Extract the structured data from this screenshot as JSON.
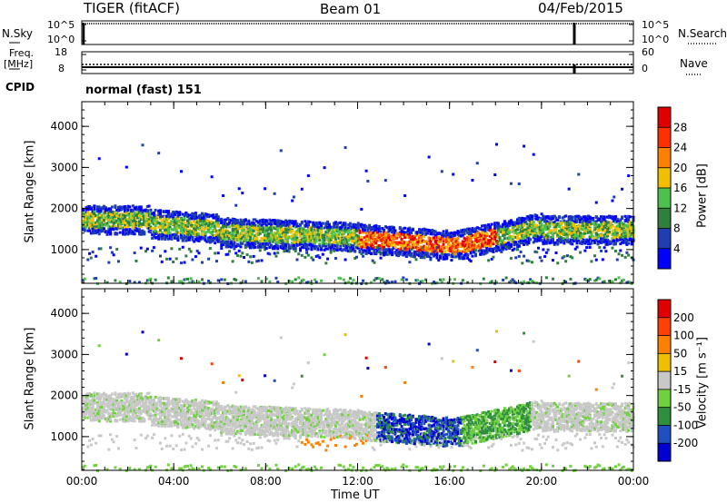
{
  "header": {
    "station": "TIGER (fitACF)",
    "beam": "Beam 01",
    "date": "04/Feb/2015"
  },
  "status_panels": {
    "nsky_label": "N.Sky",
    "nsky_ticks": [
      "10^5",
      "10^0"
    ],
    "nsearch_label": "N.Search",
    "nsearch_ticks": [
      "10^5",
      "10^0"
    ],
    "freq_label_1": "Freq.",
    "freq_label_2": "[MHz]",
    "freq_ticks": [
      "18",
      "8"
    ],
    "nave_label": "Nave",
    "nave_ticks": [
      "60",
      "0"
    ],
    "cpid_label": "CPID",
    "cpid_value": "normal (fast) 151"
  },
  "chart_data": [
    {
      "type": "heatmap",
      "panel": "power",
      "ylabel": "Slant Range [km]",
      "xlabel": "",
      "ylim": [
        180,
        4600
      ],
      "xlim": [
        0,
        24
      ],
      "yticks": [
        "1000",
        "2000",
        "3000",
        "4000"
      ],
      "ytick_values": [
        1000,
        2000,
        3000,
        4000
      ],
      "colorbar": {
        "label": "Power [dB]",
        "ticks": [
          "4",
          "8",
          "12",
          "16",
          "20",
          "24",
          "28"
        ],
        "tick_values": [
          4,
          8,
          12,
          16,
          20,
          24,
          28
        ],
        "range": [
          0,
          32
        ],
        "colors": [
          "#0000ff",
          "#1f3fb0",
          "#2f7f3f",
          "#4fc04f",
          "#f0c000",
          "#ff8000",
          "#ff3000",
          "#e00000"
        ]
      }
    },
    {
      "type": "heatmap",
      "panel": "velocity",
      "ylabel": "Slant Range [km]",
      "xlabel": "Time UT",
      "ylim": [
        180,
        4600
      ],
      "xlim": [
        0,
        24
      ],
      "xticks": [
        "00:00",
        "04:00",
        "08:00",
        "12:00",
        "16:00",
        "20:00",
        "00:00"
      ],
      "xtick_values": [
        0,
        4,
        8,
        12,
        16,
        20,
        24
      ],
      "yticks": [
        "1000",
        "2000",
        "3000",
        "4000"
      ],
      "ytick_values": [
        1000,
        2000,
        3000,
        4000
      ],
      "colorbar": {
        "label": "Velocity [m s⁻¹]",
        "ticks": [
          "200",
          "100",
          "50",
          "15",
          "-15",
          "-50",
          "-100",
          "-200"
        ],
        "colors": [
          "#0000d0",
          "#2050c0",
          "#2f8f3f",
          "#70d040",
          "#c8c8c8",
          "#f0c000",
          "#ff8000",
          "#ff4000",
          "#e00000"
        ]
      }
    }
  ]
}
